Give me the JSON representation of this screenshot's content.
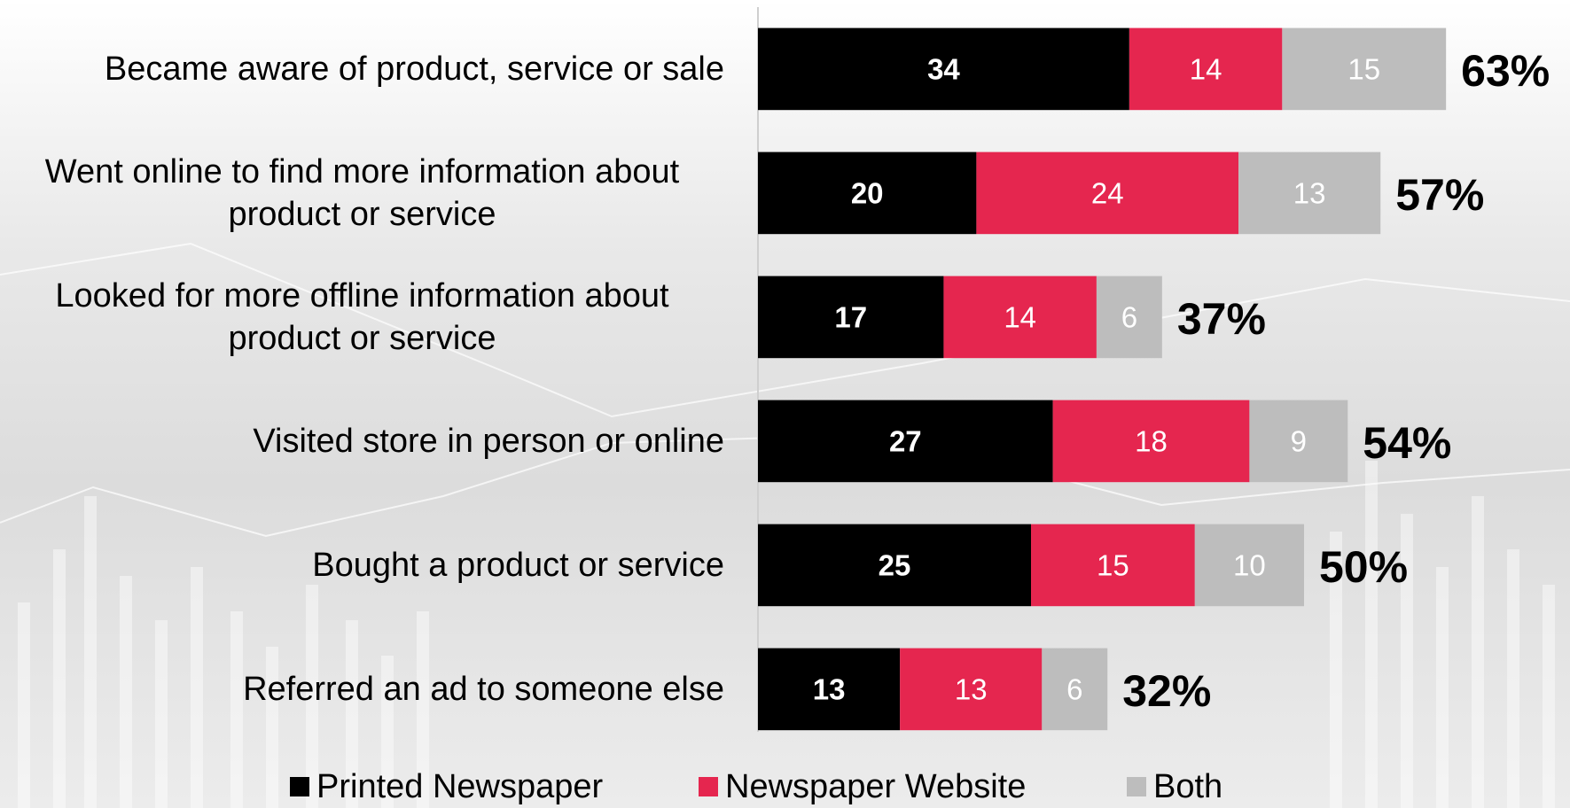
{
  "chart_data": {
    "type": "stacked-bar-horizontal",
    "categories": [
      "Became aware of product, service or sale",
      "Went online to find more information about product or service",
      "Looked for more offline information about product or service",
      "Visited store in person or online",
      "Bought a product or service",
      "Referred an ad to someone else"
    ],
    "series": [
      {
        "name": "Printed Newspaper",
        "color": "#000000",
        "label_color": "#ffffff",
        "values": [
          34,
          20,
          17,
          27,
          25,
          13
        ]
      },
      {
        "name": "Newspaper Website",
        "color": "#e5264f",
        "label_color": "#ffffff",
        "values": [
          14,
          24,
          14,
          18,
          15,
          13
        ]
      },
      {
        "name": "Both",
        "color": "#bdbdbd",
        "label_color": "#ffffff",
        "values": [
          15,
          13,
          6,
          9,
          10,
          6
        ]
      }
    ],
    "totals": [
      63,
      57,
      37,
      54,
      50,
      32
    ],
    "total_labels": [
      "63%",
      "57%",
      "37%",
      "54%",
      "50%",
      "32%"
    ]
  }
}
